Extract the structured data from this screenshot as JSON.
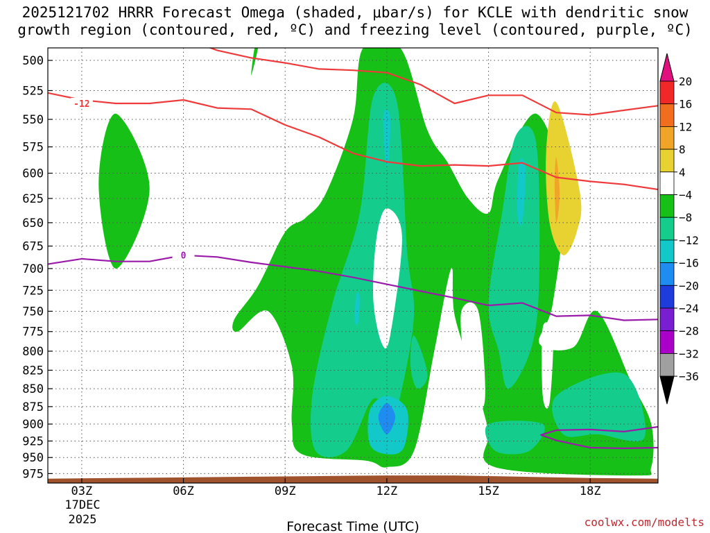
{
  "title_line1": "2025121702 HRRR Forecast Omega (shaded, μbar/s) for KCLE with dendritic snow",
  "title_line2": "growth region (contoured, red, ºC) and freezing level (contoured, purple, ºC)",
  "credit": "coolwx.com/modelts",
  "chart_data": {
    "type": "heatmap",
    "xlabel": "Forecast Time (UTC)",
    "x_ticks": [
      "03Z",
      "06Z",
      "09Z",
      "12Z",
      "15Z",
      "18Z"
    ],
    "x_hours": [
      3,
      6,
      9,
      12,
      15,
      18
    ],
    "x_range_hours": [
      2,
      20
    ],
    "date_labels": [
      "17DEC",
      "2025"
    ],
    "y_ticks": [
      500,
      525,
      550,
      575,
      600,
      625,
      650,
      675,
      700,
      725,
      750,
      775,
      800,
      825,
      850,
      875,
      900,
      925,
      950,
      975
    ],
    "y_range_hpa": [
      490,
      990
    ],
    "y_scale": "log-pressure",
    "grid": true,
    "colorbar": {
      "levels": [
        20,
        16,
        12,
        8,
        4,
        -4,
        -8,
        -12,
        -16,
        -20,
        -24,
        -28,
        -32,
        -36
      ],
      "colors": [
        "#f02828",
        "#f06e1e",
        "#f0a428",
        "#e8d232",
        "#ffffff",
        "#16c016",
        "#14cc8c",
        "#12c8c8",
        "#1e8cf0",
        "#1e3cdc",
        "#7a1ed2",
        "#aa00c8",
        "#a0a0a0"
      ],
      "top_color": "#e0107e",
      "bottom_color": "#000000"
    },
    "omega_regions": [
      {
        "level": -4,
        "color": "#16c016",
        "points": [
          [
            4,
            545
          ],
          [
            5,
            615
          ],
          [
            4,
            700
          ],
          [
            3.5,
            610
          ]
        ]
      },
      {
        "level": -4,
        "color": "#16c016",
        "points": [
          [
            8.1,
            490
          ],
          [
            8.2,
            490
          ],
          [
            8.0,
            512
          ]
        ]
      },
      {
        "level": -4,
        "color": "#16c016",
        "points": [
          [
            11.3,
            490
          ],
          [
            12.4,
            490
          ],
          [
            13.2,
            560
          ],
          [
            13.8,
            590
          ],
          [
            14.4,
            625
          ],
          [
            15,
            640
          ],
          [
            15.3,
            605
          ],
          [
            16.4,
            545
          ],
          [
            17.2,
            620
          ],
          [
            16.9,
            740
          ],
          [
            16.5,
            790
          ],
          [
            17.5,
            795
          ],
          [
            18.2,
            750
          ],
          [
            19.2,
            840
          ],
          [
            19.8,
            900
          ],
          [
            19.8,
            965
          ],
          [
            19.3,
            978
          ],
          [
            15.2,
            965
          ],
          [
            15.0,
            910
          ],
          [
            14.6,
            840
          ],
          [
            14.0,
            755
          ],
          [
            13.9,
            700
          ],
          [
            13.4,
            800
          ],
          [
            12.8,
            940
          ],
          [
            12.0,
            965
          ],
          [
            11.4,
            955
          ],
          [
            9.5,
            945
          ],
          [
            9.2,
            900
          ],
          [
            9.2,
            820
          ],
          [
            8.5,
            750
          ],
          [
            7.6,
            775
          ],
          [
            7.5,
            760
          ],
          [
            8.2,
            720
          ],
          [
            9.0,
            660
          ],
          [
            9.6,
            645
          ],
          [
            10.2,
            620
          ],
          [
            11.0,
            550
          ]
        ]
      },
      {
        "level": -8,
        "color": "#14cc8c",
        "points": [
          [
            11.6,
            530
          ],
          [
            12.3,
            535
          ],
          [
            12.6,
            680
          ],
          [
            12.8,
            755
          ],
          [
            12.4,
            860
          ],
          [
            12.2,
            870
          ],
          [
            11.8,
            865
          ],
          [
            11.5,
            870
          ],
          [
            10.8,
            940
          ],
          [
            9.9,
            940
          ],
          [
            9.8,
            860
          ],
          [
            10.4,
            740
          ],
          [
            11.2,
            640
          ]
        ]
      },
      {
        "level": -8,
        "color": "#14cc8c",
        "points": [
          [
            15.8,
            565
          ],
          [
            16.4,
            570
          ],
          [
            16.5,
            700
          ],
          [
            16.3,
            790
          ],
          [
            15.6,
            850
          ],
          [
            15.3,
            800
          ],
          [
            15.0,
            740
          ],
          [
            15.4,
            640
          ]
        ]
      },
      {
        "level": -8,
        "color": "#14cc8c",
        "points": [
          [
            12.8,
            780
          ],
          [
            13.2,
            830
          ],
          [
            12.9,
            850
          ],
          [
            12.7,
            820
          ]
        ]
      },
      {
        "level": -8,
        "color": "#14cc8c",
        "points": [
          [
            15.0,
            900
          ],
          [
            16.6,
            900
          ],
          [
            16.2,
            940
          ],
          [
            15.2,
            940
          ]
        ]
      },
      {
        "level": -8,
        "color": "#14cc8c",
        "points": [
          [
            17.0,
            860
          ],
          [
            19.0,
            830
          ],
          [
            19.6,
            920
          ],
          [
            18.2,
            915
          ],
          [
            17.2,
            915
          ]
        ]
      },
      {
        "level": -12,
        "color": "#12c8c8",
        "points": [
          [
            11.9,
            545
          ],
          [
            12.1,
            548
          ],
          [
            12.05,
            590
          ],
          [
            11.95,
            585
          ]
        ]
      },
      {
        "level": -12,
        "color": "#12c8c8",
        "points": [
          [
            15.9,
            590
          ],
          [
            16.1,
            595
          ],
          [
            16.0,
            650
          ],
          [
            15.85,
            640
          ]
        ]
      },
      {
        "level": -12,
        "color": "#12c8c8",
        "points": [
          [
            11.1,
            730
          ],
          [
            11.2,
            733
          ],
          [
            11.15,
            765
          ],
          [
            11.05,
            760
          ]
        ]
      },
      {
        "level": -12,
        "color": "#12c8c8",
        "points": [
          [
            12.0,
            860
          ],
          [
            12.6,
            880
          ],
          [
            12.5,
            935
          ],
          [
            12.0,
            945
          ],
          [
            11.5,
            930
          ],
          [
            11.5,
            880
          ]
        ]
      },
      {
        "level": -16,
        "color": "#1e8cf0",
        "points": [
          [
            12.0,
            870
          ],
          [
            12.25,
            890
          ],
          [
            12.0,
            915
          ],
          [
            11.75,
            890
          ]
        ]
      },
      {
        "level": 4,
        "color": "#e8d232",
        "points": [
          [
            17.0,
            535
          ],
          [
            17.7,
            620
          ],
          [
            17.6,
            660
          ],
          [
            17.2,
            685
          ],
          [
            16.8,
            650
          ],
          [
            16.7,
            580
          ]
        ]
      },
      {
        "level": 8,
        "color": "#f0a428",
        "points": [
          [
            17.0,
            585
          ],
          [
            17.1,
            620
          ],
          [
            17.0,
            650
          ],
          [
            16.95,
            610
          ]
        ]
      }
    ],
    "omega_holes": [
      {
        "color": "#ffffff",
        "points": [
          [
            12.0,
            635
          ],
          [
            12.45,
            665
          ],
          [
            12.1,
            780
          ],
          [
            11.85,
            790
          ],
          [
            11.6,
            735
          ],
          [
            11.7,
            665
          ]
        ]
      },
      {
        "color": "#ffffff",
        "points": [
          [
            14.2,
            750
          ],
          [
            14.7,
            750
          ],
          [
            14.9,
            860
          ],
          [
            14.6,
            880
          ],
          [
            14.3,
            820
          ]
        ]
      },
      {
        "color": "#ffffff",
        "points": [
          [
            16.6,
            770
          ],
          [
            16.9,
            780
          ],
          [
            16.8,
            870
          ],
          [
            16.6,
            860
          ]
        ]
      }
    ],
    "series": [
      {
        "label": "-12",
        "color": "#ee3a3a",
        "label_at": [
          3.0,
          536
        ],
        "points": [
          [
            2,
            527
          ],
          [
            3,
            533
          ],
          [
            4,
            536
          ],
          [
            5,
            536
          ],
          [
            6,
            533
          ],
          [
            7,
            540
          ],
          [
            8,
            541
          ],
          [
            9,
            555
          ],
          [
            10,
            566
          ],
          [
            11,
            581
          ],
          [
            12,
            589
          ],
          [
            13,
            593
          ],
          [
            14,
            592
          ],
          [
            15,
            593
          ],
          [
            16,
            590
          ],
          [
            17,
            604
          ],
          [
            18,
            608
          ],
          [
            19,
            611
          ],
          [
            20,
            616
          ]
        ]
      },
      {
        "color": "#ee3a3a",
        "points": [
          [
            6.6,
            488
          ],
          [
            7,
            492
          ],
          [
            8,
            498
          ],
          [
            9,
            502
          ],
          [
            10,
            507
          ],
          [
            11,
            508
          ],
          [
            12,
            510
          ],
          [
            13,
            520
          ],
          [
            14,
            536
          ],
          [
            15,
            529
          ],
          [
            16,
            529
          ],
          [
            17,
            544
          ],
          [
            18,
            546
          ],
          [
            19,
            542
          ],
          [
            20,
            538
          ]
        ]
      },
      {
        "label": "0",
        "color": "#9a1aaa",
        "label_at": [
          6.0,
          685
        ],
        "points": [
          [
            2,
            695
          ],
          [
            3,
            689
          ],
          [
            4,
            692
          ],
          [
            5,
            692
          ],
          [
            6,
            685
          ],
          [
            7,
            687
          ],
          [
            8,
            693
          ],
          [
            9,
            698
          ],
          [
            10,
            703
          ],
          [
            11,
            710
          ],
          [
            12,
            718
          ],
          [
            13,
            726
          ],
          [
            14,
            734
          ],
          [
            15,
            743
          ],
          [
            16,
            740
          ],
          [
            17,
            756
          ],
          [
            18,
            755
          ],
          [
            19,
            761
          ],
          [
            20,
            760
          ]
        ]
      },
      {
        "color": "#9a1aaa",
        "points": [
          [
            20,
            904
          ],
          [
            19,
            911
          ],
          [
            18,
            908
          ],
          [
            17,
            909
          ],
          [
            16.55,
            916
          ],
          [
            17,
            924
          ],
          [
            18,
            935
          ],
          [
            19,
            936
          ],
          [
            20,
            935
          ]
        ]
      }
    ],
    "terrain": {
      "color": "#a0522d",
      "points": [
        [
          2,
          983
        ],
        [
          4,
          982
        ],
        [
          6,
          981
        ],
        [
          8,
          980
        ],
        [
          10,
          979
        ],
        [
          12,
          978
        ],
        [
          14,
          978
        ],
        [
          16,
          980
        ],
        [
          18,
          982
        ],
        [
          20,
          983
        ]
      ]
    }
  }
}
